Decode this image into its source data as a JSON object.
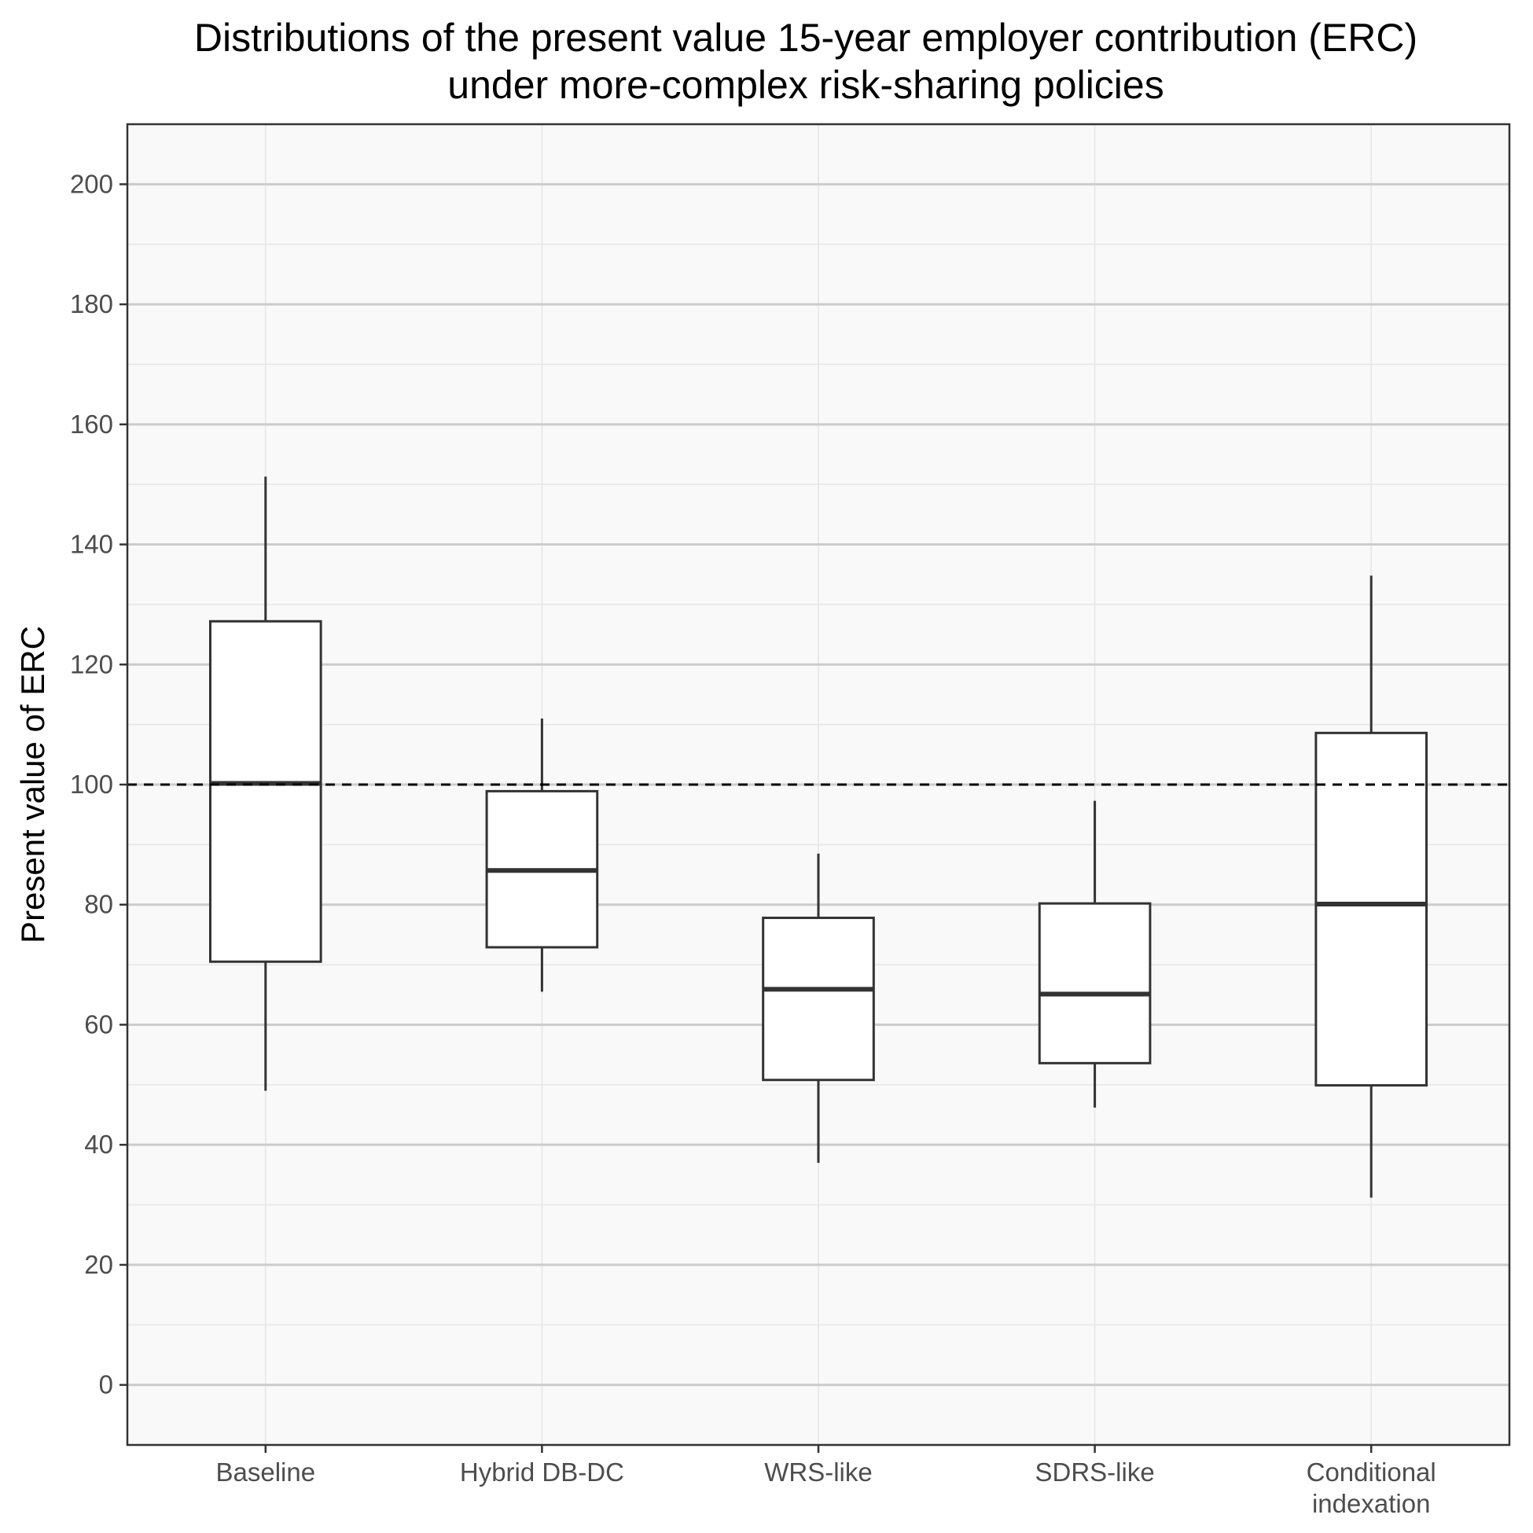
{
  "chart_data": {
    "type": "boxplot",
    "title_lines": [
      "Distributions of the present value 15-year employer contribution (ERC)",
      "under more-complex risk-sharing policies"
    ],
    "xlabel": "",
    "ylabel": "Present value of ERC",
    "ylim": [
      -10,
      210
    ],
    "yticks": [
      0,
      20,
      40,
      60,
      80,
      100,
      120,
      140,
      160,
      180,
      200
    ],
    "grid": true,
    "reference_line": {
      "y": 100,
      "style": "dashed"
    },
    "categories": [
      [
        "Baseline"
      ],
      [
        "Hybrid DB-DC"
      ],
      [
        "WRS-like"
      ],
      [
        "SDRS-like"
      ],
      [
        "Conditional",
        "indexation"
      ]
    ],
    "boxes": [
      {
        "whisker_low": 49,
        "q1": 70.5,
        "median": 100.2,
        "q3": 127.2,
        "whisker_high": 151.3
      },
      {
        "whisker_low": 65.5,
        "q1": 72.9,
        "median": 85.7,
        "q3": 98.9,
        "whisker_high": 111
      },
      {
        "whisker_low": 37,
        "q1": 50.8,
        "median": 65.9,
        "q3": 77.8,
        "whisker_high": 88.5
      },
      {
        "whisker_low": 46.2,
        "q1": 53.6,
        "median": 65.1,
        "q3": 80.2,
        "whisker_high": 97.3
      },
      {
        "whisker_low": 31.2,
        "q1": 49.9,
        "median": 80.1,
        "q3": 108.6,
        "whisker_high": 134.8
      }
    ],
    "colors": {
      "panel_bg": "#f9f9f9",
      "grid_major": "#cccccc",
      "grid_minor": "#e6e6e6",
      "box_line": "#333333",
      "box_fill": "#ffffff",
      "reference_line": "#000000"
    }
  }
}
